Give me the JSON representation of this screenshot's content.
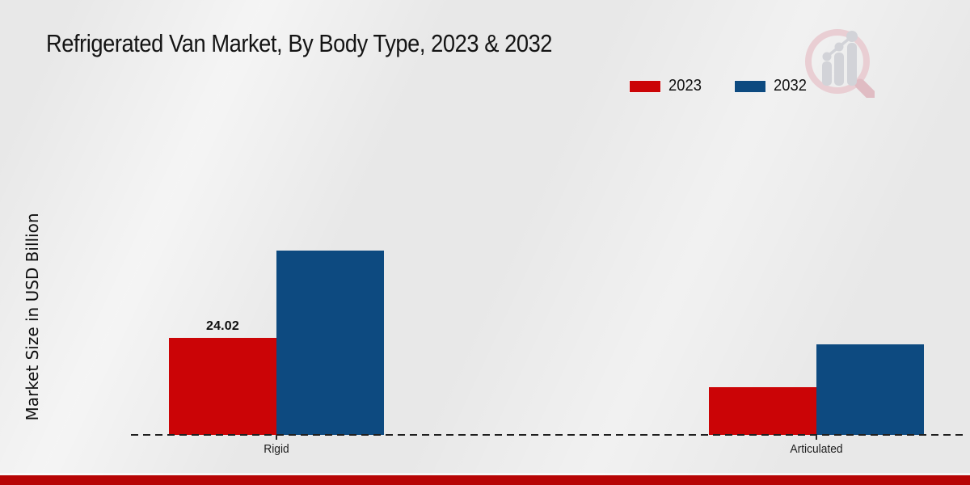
{
  "header": {
    "title": "Refrigerated Van Market, By Body Type, 2023 & 2032"
  },
  "chart_data": {
    "type": "bar",
    "title": "Refrigerated Van Market, By Body Type, 2023 & 2032",
    "categories": [
      "Rigid",
      "Articulated"
    ],
    "series": [
      {
        "name": "2023",
        "color": "#cb0406",
        "values": [
          24.02,
          11.8
        ]
      },
      {
        "name": "2032",
        "color": "#0d4a80",
        "values": [
          45.6,
          22.3
        ]
      }
    ],
    "xlabel": "",
    "ylabel": "Market Size in USD Billion",
    "ylim": [
      0,
      50
    ],
    "grid": false,
    "y_axis_ticks_visible": false,
    "baseline_style": "dashed",
    "legend_position": "top-right",
    "data_labels": [
      {
        "series": "2023",
        "category": "Rigid",
        "text": "24.02"
      }
    ]
  },
  "branding": {
    "logo_icon": "magnifier-bar-chart-logo-icon",
    "footer_color": "#b70505",
    "logo_ring_color": "#e9ced3",
    "logo_handle_color": "#e0bcc3",
    "logo_bars_color": "#d2d3d8"
  }
}
